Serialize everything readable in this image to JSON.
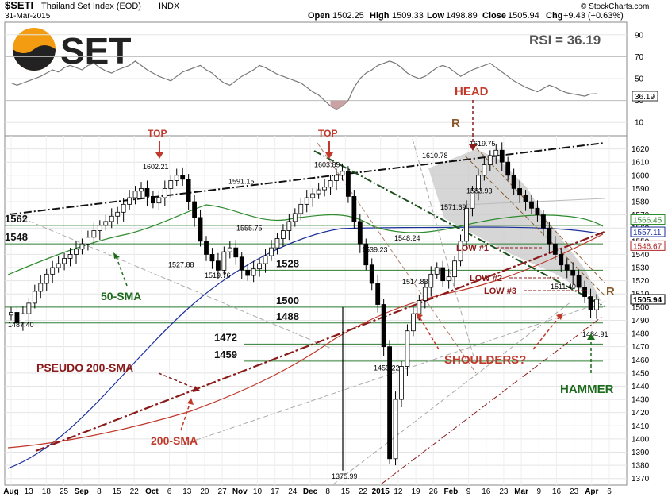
{
  "header": {
    "symbol": "$SETI",
    "name": "Thailand Set Index (EOD)",
    "exchange": "INDX",
    "date": "31-Mar-2015",
    "open_label": "Open",
    "open": "1502.25",
    "high_label": "High",
    "high": "1509.33",
    "low_label": "Low",
    "low": "1498.89",
    "close_label": "Close",
    "close": "1505.94",
    "chg_label": "Chg",
    "chg": "+9.43 (+0.63%)",
    "copyright": "© StockCharts.com"
  },
  "logo": {
    "text": "SET",
    "colors": {
      "orange": "#f39c12",
      "dark": "#222222"
    }
  },
  "rsi": {
    "title": "RSI = 36.19",
    "value_badge": "36.19",
    "ticks": [
      "90",
      "70",
      "50",
      "30",
      "10"
    ],
    "values": [
      46,
      44,
      46,
      48,
      50,
      52,
      55,
      58,
      56,
      60,
      62,
      60,
      58,
      62,
      64,
      60,
      57,
      55,
      58,
      60,
      62,
      66,
      62,
      58,
      55,
      52,
      50,
      48,
      52,
      56,
      58,
      60,
      62,
      58,
      55,
      50,
      46,
      44,
      48,
      52,
      55,
      58,
      62,
      60,
      57,
      54,
      52,
      50,
      48,
      46,
      42,
      38,
      35,
      30,
      25,
      22,
      25,
      30,
      42,
      50,
      55,
      58,
      62,
      64,
      66,
      64,
      60,
      55,
      52,
      50,
      52,
      56,
      60,
      62,
      60,
      56,
      52,
      55,
      58,
      60,
      62,
      64,
      60,
      56,
      52,
      48,
      45,
      42,
      40,
      38,
      41,
      44,
      42,
      39,
      37,
      36,
      35,
      34,
      36,
      36.19
    ]
  },
  "chart_data": {
    "type": "candlestick",
    "title": "$SETI Thailand Set Index (EOD) INDX",
    "ylim": [
      1365,
      1630
    ],
    "y_ticks": [
      1370,
      1380,
      1390,
      1400,
      1410,
      1420,
      1430,
      1440,
      1450,
      1460,
      1470,
      1480,
      1490,
      1500,
      1510,
      1520,
      1530,
      1540,
      1550,
      1560,
      1570,
      1580,
      1590,
      1600,
      1610,
      1620
    ],
    "x_labels": [
      "Aug",
      "13",
      "18",
      "25",
      "Sep",
      "8",
      "15",
      "22",
      "Oct",
      "6",
      "13",
      "20",
      "27",
      "Nov",
      "10",
      "17",
      "24",
      "Dec",
      "8",
      "15",
      "22",
      "2015",
      "12",
      "19",
      "26",
      "Feb",
      "9",
      "16",
      "23",
      "Mar",
      "9",
      "16",
      "23",
      "Apr",
      "6"
    ],
    "price_labels": [
      {
        "text": "1487.40",
        "value": 1487.4
      },
      {
        "text": "1527.88",
        "value": 1527.88
      },
      {
        "text": "1519.76",
        "value": 1519.76
      },
      {
        "text": "1555.75",
        "value": 1555.75
      },
      {
        "text": "1591.15",
        "value": 1591.15
      },
      {
        "text": "1602.21",
        "value": 1602.21
      },
      {
        "text": "1603.89",
        "value": 1603.89
      },
      {
        "text": "1375.99",
        "value": 1375.99
      },
      {
        "text": "1539.23",
        "value": 1539.23
      },
      {
        "text": "1514.83",
        "value": 1514.83
      },
      {
        "text": "1459.22",
        "value": 1459.22
      },
      {
        "text": "1548.24",
        "value": 1548.24
      },
      {
        "text": "1571.69",
        "value": 1571.69
      },
      {
        "text": "1610.78",
        "value": 1610.78
      },
      {
        "text": "1619.75",
        "value": 1619.75
      },
      {
        "text": "1583.93",
        "value": 1583.93
      },
      {
        "text": "1511.40",
        "value": 1511.4
      },
      {
        "text": "1484.91",
        "value": 1484.91
      }
    ],
    "right_badges": [
      {
        "text": "1566.45",
        "value": 1566.45,
        "color": "#2e8b2e"
      },
      {
        "text": "1557.11",
        "value": 1557.11,
        "color": "#1a2f9c"
      },
      {
        "text": "1546.67",
        "value": 1546.67,
        "color": "#b22222"
      },
      {
        "text": "1505.94",
        "value": 1505.94,
        "color": "#000000"
      }
    ],
    "support_levels": [
      {
        "label": "1562",
        "value": 1562
      },
      {
        "label": "1548",
        "value": 1548
      },
      {
        "label": "1528",
        "value": 1528
      },
      {
        "label": "1500",
        "value": 1500
      },
      {
        "label": "1488",
        "value": 1488
      },
      {
        "label": "1472",
        "value": 1472
      },
      {
        "label": "1459",
        "value": 1459
      }
    ],
    "annotations": {
      "top1": "TOP",
      "top2": "TOP",
      "head": "HEAD",
      "r_left": "R",
      "r_right": "R",
      "low1": "LOW #1",
      "low2": "LOW #2",
      "low3": "LOW #3",
      "shoulders": "SHOULDERS?",
      "hammer": "HAMMER",
      "sma50": "50-SMA",
      "pseudo200": "PSEUDO 200-SMA",
      "sma200": "200-SMA"
    },
    "closes": [
      1496,
      1488,
      1495,
      1503,
      1512,
      1518,
      1525,
      1530,
      1533,
      1537,
      1540,
      1544,
      1548,
      1553,
      1558,
      1562,
      1565,
      1569,
      1572,
      1578,
      1583,
      1588,
      1590,
      1584,
      1579,
      1583,
      1590,
      1596,
      1600,
      1597,
      1580,
      1568,
      1550,
      1540,
      1535,
      1528,
      1542,
      1545,
      1538,
      1528,
      1524,
      1529,
      1533,
      1539,
      1545,
      1552,
      1558,
      1565,
      1571,
      1578,
      1583,
      1586,
      1589,
      1591,
      1596,
      1600,
      1603,
      1584,
      1565,
      1548,
      1532,
      1518,
      1502,
      1470,
      1385,
      1430,
      1455,
      1482,
      1495,
      1505,
      1515,
      1525,
      1530,
      1520,
      1523,
      1535,
      1550,
      1575,
      1588,
      1600,
      1608,
      1615,
      1619,
      1610,
      1600,
      1590,
      1585,
      1580,
      1575,
      1570,
      1560,
      1548,
      1540,
      1532,
      1528,
      1524,
      1515,
      1508,
      1498,
      1505.94
    ],
    "colors": {
      "sma50": "#2e8b2e",
      "sma_blue": "#1a2f9c",
      "sma200": "#c0392b",
      "pseudo": "#8b1a1a",
      "annotation_red": "#c0392b",
      "annotation_brown": "#8b5a2b",
      "annotation_green": "#1e6b1e",
      "shaded": "#c8c8c8"
    }
  }
}
